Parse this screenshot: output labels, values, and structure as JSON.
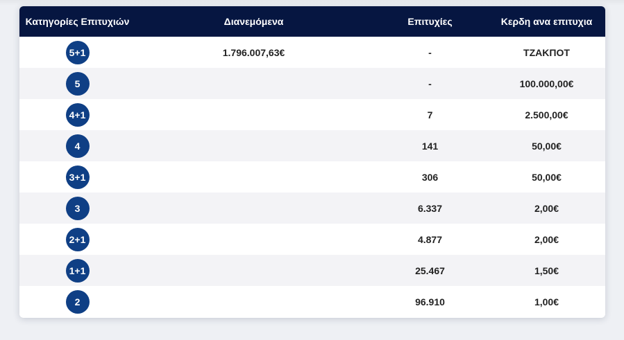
{
  "table": {
    "headers": {
      "category": "Κατηγορίες Επιτυχιών",
      "distributed": "Διανεμόμενα",
      "winners": "Επιτυχίες",
      "prize": "Κερδη ανα επιτυχια"
    },
    "rows": [
      {
        "category": "5+1",
        "distributed": "1.796.007,63€",
        "winners": "-",
        "prize": "ΤΖΑΚΠΟΤ"
      },
      {
        "category": "5",
        "distributed": "",
        "winners": "-",
        "prize": "100.000,00€"
      },
      {
        "category": "4+1",
        "distributed": "",
        "winners": "7",
        "prize": "2.500,00€"
      },
      {
        "category": "4",
        "distributed": "",
        "winners": "141",
        "prize": "50,00€"
      },
      {
        "category": "3+1",
        "distributed": "",
        "winners": "306",
        "prize": "50,00€"
      },
      {
        "category": "3",
        "distributed": "",
        "winners": "6.337",
        "prize": "2,00€"
      },
      {
        "category": "2+1",
        "distributed": "",
        "winners": "4.877",
        "prize": "2,00€"
      },
      {
        "category": "1+1",
        "distributed": "",
        "winners": "25.467",
        "prize": "1,50€"
      },
      {
        "category": "2",
        "distributed": "",
        "winners": "96.910",
        "prize": "1,00€"
      }
    ]
  },
  "colors": {
    "header_bg": "#061641",
    "ball_bg": "#0f3f85",
    "row_alt_bg": "#f3f3f6"
  }
}
